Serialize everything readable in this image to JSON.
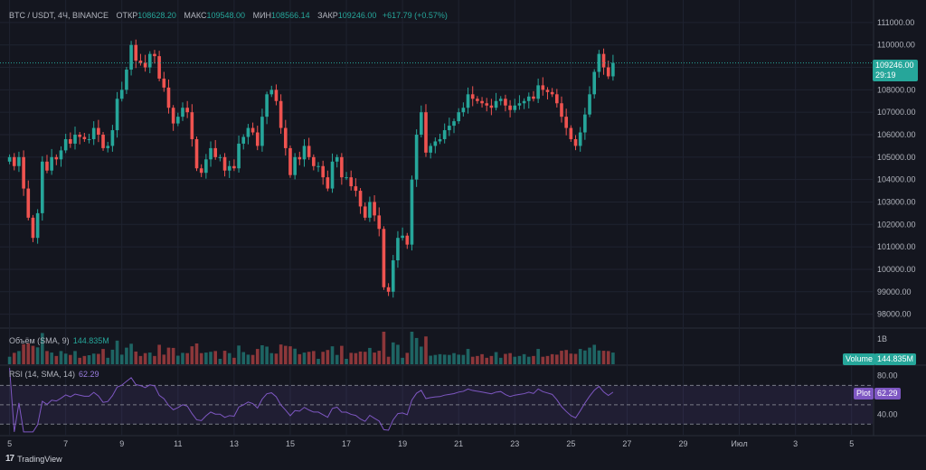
{
  "header": {
    "symbol": "BTC / USDT, 4Ч, BINANCE",
    "open_label": "ОТКР",
    "open_value": "108628.20",
    "high_label": "МАКС",
    "high_value": "109548.00",
    "low_label": "МИН",
    "low_value": "108566.14",
    "close_label": "ЗАКР",
    "close_value": "109246.00",
    "change": "+617.79 (+0.57%)"
  },
  "price_badge": {
    "price": "109246.00",
    "timer": "29:19"
  },
  "volume": {
    "label": "Объём (SMA, 9)",
    "value": "144.835M",
    "badge_label": "Volume",
    "badge_value": "144.835M",
    "axis_label": "1B"
  },
  "rsi": {
    "label": "RSI (14, SMA, 14)",
    "value": "62.29",
    "badge_label": "Plot",
    "badge_value": "62.29",
    "axis_labels": [
      "80.00",
      "40.00"
    ]
  },
  "footer": {
    "brand": "TradingView"
  },
  "colors": {
    "up": "#26a69a",
    "down": "#ef5350",
    "rsi": "#7e57c2",
    "background": "#14161f"
  },
  "chart_data": [
    {
      "type": "candlestick",
      "title": "BTC / USDT, 4Ч, BINANCE",
      "y_ticks": [
        98000,
        99000,
        100000,
        101000,
        102000,
        103000,
        104000,
        105000,
        106000,
        107000,
        108000,
        109000,
        110000,
        111000
      ],
      "y_tick_labels": [
        "98000.00",
        "99000.00",
        "100000.00",
        "101000.00",
        "102000.00",
        "103000.00",
        "104000.00",
        "105000.00",
        "106000.00",
        "107000.00",
        "108000.00",
        "109000.00",
        "110000.00",
        "111000.00"
      ],
      "x_tick_labels": [
        "5",
        "7",
        "9",
        "11",
        "13",
        "15",
        "17",
        "19",
        "21",
        "23",
        "25",
        "27",
        "29",
        "Июл",
        "3",
        "5"
      ],
      "x_tick_index": [
        0,
        12,
        24,
        36,
        48,
        60,
        72,
        84,
        96,
        108,
        120,
        132,
        144,
        156,
        168,
        180
      ],
      "ylim": [
        97500,
        111600
      ],
      "grid": true,
      "close": [
        105000,
        104600,
        105000,
        103600,
        102300,
        101400,
        102500,
        104800,
        104400,
        105000,
        104900,
        105300,
        105800,
        105600,
        106000,
        105900,
        105800,
        105800,
        106300,
        106000,
        105400,
        105500,
        106200,
        107600,
        108000,
        108900,
        110000,
        109300,
        109200,
        109000,
        109600,
        109500,
        108500,
        108100,
        107200,
        106500,
        106800,
        107200,
        107000,
        105800,
        104500,
        104300,
        104900,
        105400,
        105000,
        105000,
        104400,
        104600,
        104500,
        105600,
        105900,
        106300,
        106100,
        105500,
        106800,
        107800,
        108000,
        107500,
        106300,
        105400,
        104200,
        105000,
        104900,
        105500,
        105000,
        104600,
        104600,
        104100,
        103600,
        104800,
        105000,
        104100,
        104100,
        103700,
        103500,
        102800,
        102300,
        103000,
        102400,
        101800,
        99200,
        99000,
        100400,
        101400,
        101500,
        101100,
        104000,
        106000,
        107000,
        105200,
        105500,
        105700,
        105800,
        106200,
        106400,
        106600,
        107000,
        107200,
        107800,
        107600,
        107500,
        107400,
        107300,
        107200,
        107500,
        107600,
        107300,
        107100,
        107300,
        107400,
        107500,
        107700,
        107600,
        108200,
        108000,
        107900,
        107800,
        107400,
        106800,
        106300,
        105800,
        105500,
        106100,
        106900,
        107800,
        108800,
        109600,
        109000,
        108600,
        109200
      ],
      "volume_series_note": "",
      "rsi_axis": [
        40,
        80
      ]
    }
  ]
}
